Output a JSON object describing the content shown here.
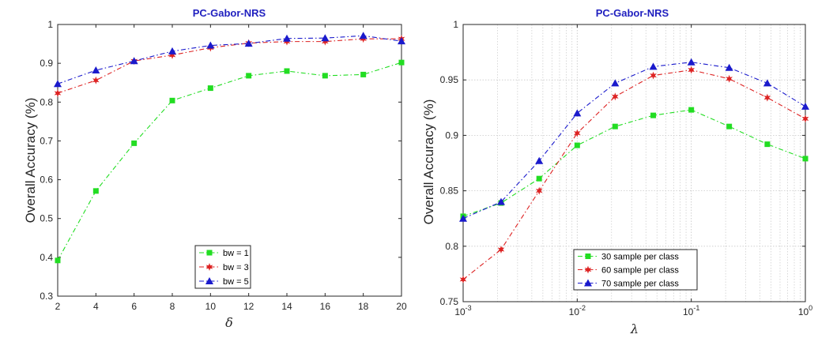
{
  "chart_data": [
    {
      "type": "line",
      "title": "PC-Gabor-NRS",
      "xlabel": "δ",
      "ylabel": "Overall Accuracy (%)",
      "x": [
        2,
        4,
        6,
        8,
        10,
        12,
        14,
        16,
        18,
        20
      ],
      "xlim": [
        2,
        20
      ],
      "ylim": [
        0.3,
        1
      ],
      "x_ticks": [
        "2",
        "4",
        "6",
        "8",
        "10",
        "12",
        "14",
        "16",
        "18",
        "20"
      ],
      "y_ticks": [
        "0.3",
        "0.4",
        "0.5",
        "0.6",
        "0.7",
        "0.8",
        "0.9",
        "1"
      ],
      "x_tick_values": [
        2,
        4,
        6,
        8,
        10,
        12,
        14,
        16,
        18,
        20
      ],
      "y_tick_values": [
        0.3,
        0.4,
        0.5,
        0.6,
        0.7,
        0.8,
        0.9,
        1.0
      ],
      "grid": false,
      "legend_position": "bottom-center",
      "series": [
        {
          "name": "bw = 1",
          "color": "#22dd22",
          "marker": "square",
          "values": [
            0.392,
            0.571,
            0.694,
            0.804,
            0.836,
            0.868,
            0.88,
            0.868,
            0.871,
            0.902
          ]
        },
        {
          "name": "bw = 3",
          "color": "#dd2222",
          "marker": "star",
          "values": [
            0.823,
            0.856,
            0.906,
            0.921,
            0.94,
            0.952,
            0.956,
            0.956,
            0.963,
            0.963
          ]
        },
        {
          "name": "bw = 5",
          "color": "#1a1acc",
          "marker": "triangle",
          "values": [
            0.847,
            0.882,
            0.906,
            0.931,
            0.946,
            0.951,
            0.964,
            0.965,
            0.971,
            0.957
          ]
        }
      ]
    },
    {
      "type": "line",
      "title": "PC-Gabor-NRS",
      "xlabel": "λ",
      "ylabel": "Overall Accuracy (%)",
      "xscale": "log",
      "x": [
        0.001,
        0.00215,
        0.00464,
        0.01,
        0.0215,
        0.0464,
        0.1,
        0.215,
        0.464,
        1
      ],
      "xlim": [
        0.001,
        1
      ],
      "ylim": [
        0.75,
        1
      ],
      "x_ticks": [
        {
          "base": "10",
          "exp": "-3"
        },
        {
          "base": "10",
          "exp": "-2"
        },
        {
          "base": "10",
          "exp": "-1"
        },
        {
          "base": "10",
          "exp": "0"
        }
      ],
      "x_tick_values": [
        0.001,
        0.01,
        0.1,
        1
      ],
      "y_ticks": [
        "0.75",
        "0.8",
        "0.85",
        "0.9",
        "0.95",
        "1"
      ],
      "y_tick_values": [
        0.75,
        0.8,
        0.85,
        0.9,
        0.95,
        1.0
      ],
      "grid": true,
      "legend_position": "bottom-center",
      "series": [
        {
          "name": "30 sample per class",
          "color": "#22dd22",
          "marker": "square",
          "values": [
            0.827,
            0.839,
            0.861,
            0.891,
            0.908,
            0.918,
            0.923,
            0.908,
            0.892,
            0.879
          ]
        },
        {
          "name": "60 sample per class",
          "color": "#dd2222",
          "marker": "star",
          "values": [
            0.77,
            0.797,
            0.85,
            0.902,
            0.935,
            0.954,
            0.959,
            0.951,
            0.934,
            0.915
          ]
        },
        {
          "name": "70 sample per class",
          "color": "#1a1acc",
          "marker": "triangle",
          "values": [
            0.825,
            0.84,
            0.877,
            0.92,
            0.947,
            0.962,
            0.966,
            0.961,
            0.947,
            0.926
          ]
        }
      ]
    }
  ]
}
